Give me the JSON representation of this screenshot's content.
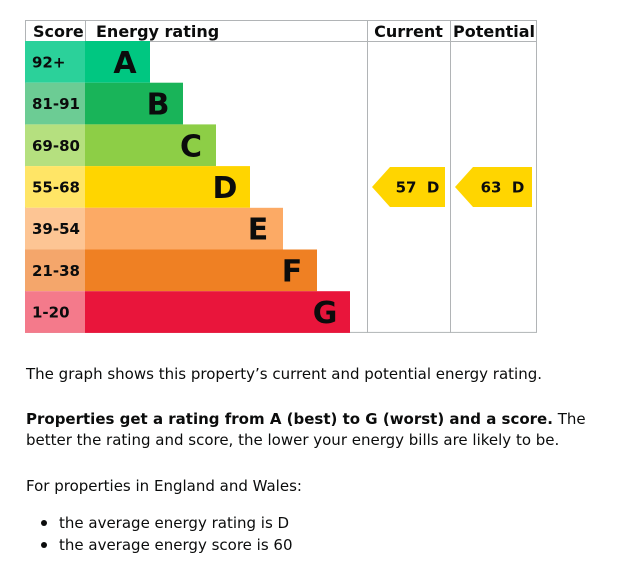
{
  "chart_data": {
    "type": "bar",
    "headers": {
      "score": "Score",
      "rating": "Energy rating",
      "current": "Current",
      "potential": "Potential"
    },
    "bands": [
      {
        "score": "92+",
        "letter": "A",
        "color": "#00c781",
        "score_color": "#2bd19a"
      },
      {
        "score": "81-91",
        "letter": "B",
        "color": "#19b459",
        "score_color": "#6ccc94"
      },
      {
        "score": "69-80",
        "letter": "C",
        "color": "#8dce46",
        "score_color": "#b5e07f"
      },
      {
        "score": "55-68",
        "letter": "D",
        "color": "#ffd500",
        "score_color": "#ffe566"
      },
      {
        "score": "39-54",
        "letter": "E",
        "color": "#fcaa65",
        "score_color": "#fdc594"
      },
      {
        "score": "21-38",
        "letter": "F",
        "color": "#ef8023",
        "score_color": "#f4a66b"
      },
      {
        "score": "1-20",
        "letter": "G",
        "color": "#e9153b",
        "score_color": "#f47a8b"
      }
    ],
    "current": {
      "score": 57,
      "band": "D",
      "label": "57  D"
    },
    "potential": {
      "score": 63,
      "band": "D",
      "label": "63  D"
    }
  },
  "text": {
    "graph_note": "The graph shows this property’s current and potential energy rating.",
    "rating_bold": "Properties get a rating from A (best) to G (worst) and a score.",
    "rating_rest": " The better the rating and score, the lower your energy bills are likely to be.",
    "england_wales": "For properties in England and Wales:",
    "bullets": [
      "the average energy rating is D",
      "the average energy score is 60"
    ]
  }
}
